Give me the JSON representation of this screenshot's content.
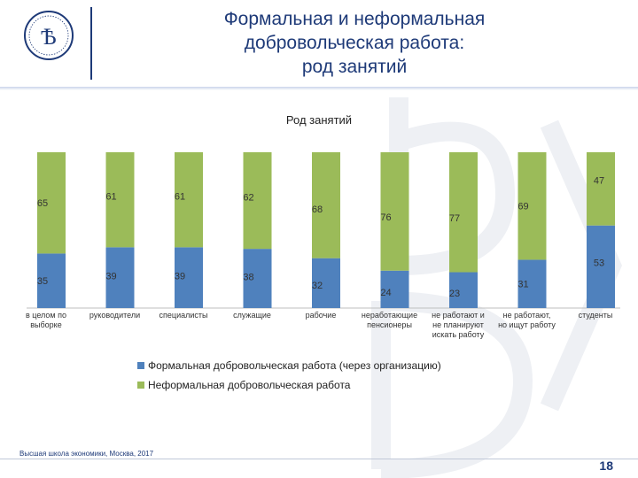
{
  "slide": {
    "title_lines": [
      "Формальная и неформальная",
      "добровольческая работа:",
      "род занятий"
    ],
    "footer": "Высшая школа экономики, Москва, 2017",
    "page_number": "18"
  },
  "colors": {
    "formal": "#4f81bd",
    "informal": "#9bbb59",
    "title": "#1e3a78"
  },
  "chart_data": {
    "type": "bar",
    "stacked": true,
    "normalized_percent": true,
    "title": "Род занятий",
    "categories": [
      [
        "в целом по",
        "выборке"
      ],
      [
        "руководители"
      ],
      [
        "специалисты"
      ],
      [
        "служащие"
      ],
      [
        "рабочие"
      ],
      [
        "неработающие",
        "пенсионеры"
      ],
      [
        "не работают и",
        "не планируют",
        "искать работу"
      ],
      [
        "не работают,",
        "но ищут работу"
      ],
      [
        "студенты"
      ]
    ],
    "series": [
      {
        "name": "Формальная добровольческая работа (через организацию)",
        "values": [
          35,
          39,
          39,
          38,
          32,
          24,
          23,
          31,
          53
        ]
      },
      {
        "name": "Неформальная добровольческая работа",
        "values": [
          65,
          61,
          61,
          62,
          68,
          76,
          77,
          69,
          47
        ]
      }
    ],
    "ylim": [
      0,
      100
    ],
    "grid": false,
    "legend": "bottom"
  }
}
